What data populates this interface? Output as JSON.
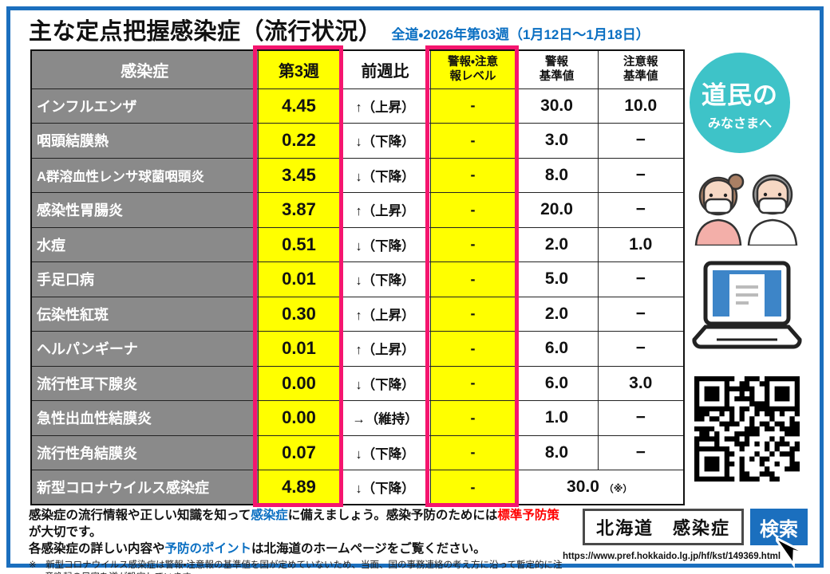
{
  "title": "主な定点把握感染症（流行状況）",
  "subtitle": "全道・2026年第03週（1月12日～1月18日）",
  "colors": {
    "accent_blue": "#1b6fbe",
    "link_blue": "#0a6fc2",
    "highlight_yellow": "#ffff00",
    "frame_pink": "#f5156e",
    "badge_teal": "#3ec3c8",
    "header_gray": "#8a8a8a",
    "alert_red": "#ff0000"
  },
  "table": {
    "headers": {
      "disease": "感染症",
      "week": "第3週",
      "trend": "前週比",
      "level_l1": "警報・注意",
      "level_l2": "報レベル",
      "alert_l1": "警報",
      "alert_l2": "基準値",
      "caution_l1": "注意報",
      "caution_l2": "基準値"
    },
    "rows": [
      {
        "name": "インフルエンザ",
        "week": "4.45",
        "trend": "↑（上昇）",
        "level": "-",
        "alert": "30.0",
        "caution": "10.0"
      },
      {
        "name": "咽頭結膜熱",
        "week": "0.22",
        "trend": "↓（下降）",
        "level": "-",
        "alert": "3.0",
        "caution": "−"
      },
      {
        "name": "A群溶血性レンサ球菌咽頭炎",
        "week": "3.45",
        "trend": "↓（下降）",
        "level": "-",
        "alert": "8.0",
        "caution": "−"
      },
      {
        "name": "感染性胃腸炎",
        "week": "3.87",
        "trend": "↑（上昇）",
        "level": "-",
        "alert": "20.0",
        "caution": "−"
      },
      {
        "name": "水痘",
        "week": "0.51",
        "trend": "↓（下降）",
        "level": "-",
        "alert": "2.0",
        "caution": "1.0"
      },
      {
        "name": "手足口病",
        "week": "0.01",
        "trend": "↓（下降）",
        "level": "-",
        "alert": "5.0",
        "caution": "−"
      },
      {
        "name": "伝染性紅斑",
        "week": "0.30",
        "trend": "↑（上昇）",
        "level": "-",
        "alert": "2.0",
        "caution": "−"
      },
      {
        "name": "ヘルパンギーナ",
        "week": "0.01",
        "trend": "↑（上昇）",
        "level": "-",
        "alert": "6.0",
        "caution": "−"
      },
      {
        "name": "流行性耳下腺炎",
        "week": "0.00",
        "trend": "↓（下降）",
        "level": "-",
        "alert": "6.0",
        "caution": "3.0"
      },
      {
        "name": "急性出血性結膜炎",
        "week": "0.00",
        "trend": "→（維持）",
        "level": "-",
        "alert": "1.0",
        "caution": "−"
      },
      {
        "name": "流行性角結膜炎",
        "week": "0.07",
        "trend": "↓（下降）",
        "level": "-",
        "alert": "8.0",
        "caution": "−"
      },
      {
        "name": "新型コロナウイルス感染症",
        "week": "4.89",
        "trend": "↓（下降）",
        "level": "-",
        "alert": "30.0",
        "alert_suffix": "（※）"
      }
    ]
  },
  "badge": {
    "line1": "道民の",
    "line2": "みなさまへ"
  },
  "footer": {
    "l1a": "感染症の流行情報や正しい知識を知って",
    "l1b": "感染症",
    "l1c": "に備えましょう。感染予防のためには",
    "l1d": "標準予防策",
    "l1e": "が大切です。",
    "l2a": "各感染症の詳しい内容や",
    "l2b": "予防のポイント",
    "l2c": "は北海道のホームページをご覧ください。",
    "note": "※　新型コロナウイルス感染症は警報・注意報の基準値を国が定めていないため、当面、国の事務連絡の考え方に沿って暫定的に注意喚起の目安を道が設定しています",
    "search_query": "北海道　感染症",
    "search_button": "検索",
    "url": "https://www.pref.hokkaido.lg.jp/hf/kst/149369.html"
  }
}
